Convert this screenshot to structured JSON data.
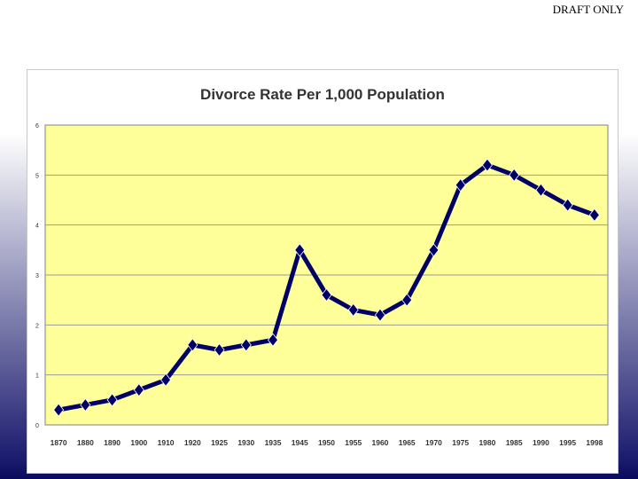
{
  "watermark": "DRAFT ONLY",
  "colors": {
    "plot_bg": "#ffff99",
    "line": "#000066",
    "marker": "#000066",
    "grid": "#9a9a9a"
  },
  "chart_data": {
    "type": "line",
    "title": "Divorce Rate Per 1,000 Population",
    "xlabel": "",
    "ylabel": "",
    "ylim": [
      0,
      6
    ],
    "yticks": [
      "0",
      "1",
      "2",
      "3",
      "4",
      "5",
      "6"
    ],
    "grid": true,
    "categories": [
      "1870",
      "1880",
      "1890",
      "1900",
      "1910",
      "1920",
      "1925",
      "1930",
      "1935",
      "1945",
      "1950",
      "1955",
      "1960",
      "1965",
      "1970",
      "1975",
      "1980",
      "1985",
      "1990",
      "1995",
      "1998"
    ],
    "series": [
      {
        "values": [
          0.3,
          0.4,
          0.5,
          0.7,
          0.9,
          1.6,
          1.5,
          1.6,
          1.7,
          3.5,
          2.6,
          2.3,
          2.2,
          2.5,
          3.5,
          4.8,
          5.2,
          5.0,
          4.7,
          4.4,
          4.2
        ]
      }
    ]
  }
}
